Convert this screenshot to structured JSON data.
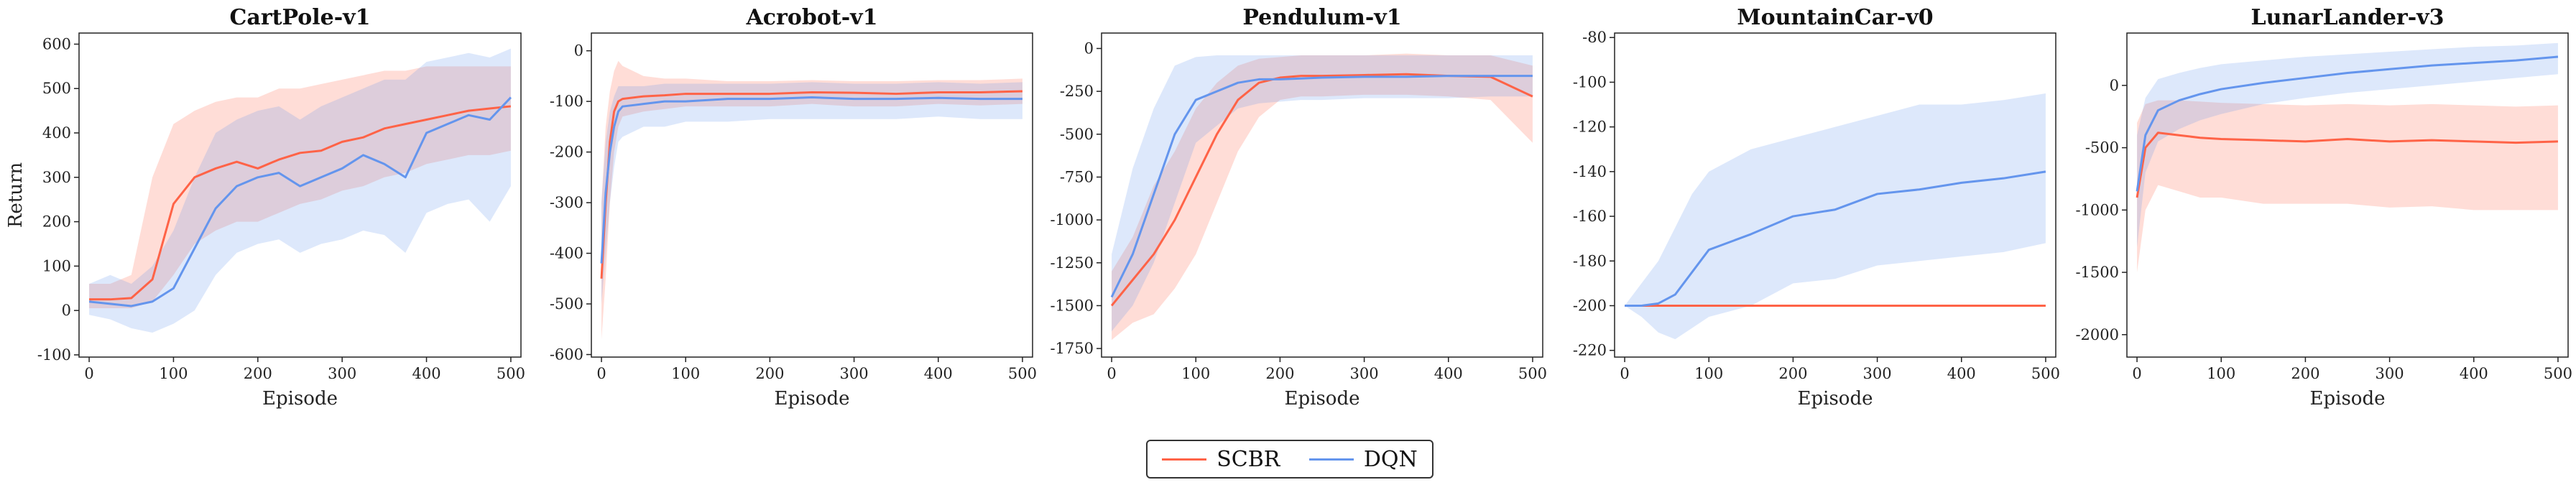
{
  "colors": {
    "SCBR": "#ff6347",
    "DQN": "#6495ed"
  },
  "legend": [
    {
      "name": "SCBR",
      "color": "#ff6347"
    },
    {
      "name": "DQN",
      "color": "#6495ed"
    }
  ],
  "chart_data": [
    {
      "type": "line",
      "title": "CartPole-v1",
      "xlabel": "Episode",
      "ylabel": "Return",
      "xlim": [
        -12,
        512
      ],
      "ylim": [
        -105,
        625
      ],
      "xticks": [
        0,
        100,
        200,
        300,
        400,
        500
      ],
      "yticks": [
        -100,
        0,
        100,
        200,
        300,
        400,
        500,
        600
      ],
      "x": [
        0,
        25,
        50,
        75,
        100,
        125,
        150,
        175,
        200,
        225,
        250,
        275,
        300,
        325,
        350,
        375,
        400,
        425,
        450,
        475,
        500
      ],
      "series": [
        {
          "name": "SCBR",
          "values": [
            25,
            25,
            28,
            70,
            240,
            300,
            320,
            335,
            320,
            340,
            355,
            360,
            380,
            390,
            410,
            420,
            430,
            440,
            450,
            455,
            460
          ],
          "lower": [
            5,
            5,
            5,
            20,
            80,
            150,
            180,
            200,
            200,
            220,
            240,
            250,
            270,
            280,
            300,
            310,
            330,
            340,
            350,
            350,
            360
          ],
          "upper": [
            60,
            60,
            80,
            300,
            420,
            450,
            470,
            480,
            480,
            500,
            500,
            510,
            520,
            530,
            540,
            540,
            550,
            550,
            550,
            550,
            550
          ]
        },
        {
          "name": "DQN",
          "values": [
            20,
            15,
            10,
            20,
            50,
            140,
            230,
            280,
            300,
            310,
            280,
            300,
            320,
            350,
            330,
            300,
            400,
            420,
            440,
            430,
            480
          ],
          "lower": [
            -10,
            -20,
            -40,
            -50,
            -30,
            0,
            80,
            130,
            150,
            160,
            130,
            150,
            160,
            180,
            170,
            130,
            220,
            240,
            250,
            200,
            280
          ],
          "upper": [
            60,
            80,
            60,
            100,
            180,
            300,
            400,
            430,
            450,
            460,
            430,
            460,
            480,
            500,
            520,
            520,
            560,
            570,
            580,
            570,
            590
          ]
        }
      ]
    },
    {
      "type": "line",
      "title": "Acrobot-v1",
      "xlabel": "Episode",
      "ylabel": "",
      "xlim": [
        -12,
        512
      ],
      "ylim": [
        -605,
        35
      ],
      "xticks": [
        0,
        100,
        200,
        300,
        400,
        500
      ],
      "yticks": [
        -600,
        -500,
        -400,
        -300,
        -200,
        -100,
        0
      ],
      "x": [
        0,
        5,
        10,
        15,
        20,
        25,
        50,
        75,
        100,
        150,
        200,
        250,
        300,
        350,
        400,
        450,
        500
      ],
      "series": [
        {
          "name": "SCBR",
          "values": [
            -450,
            -300,
            -180,
            -120,
            -100,
            -95,
            -90,
            -88,
            -85,
            -85,
            -85,
            -82,
            -83,
            -85,
            -82,
            -82,
            -80
          ],
          "lower": [
            -570,
            -450,
            -300,
            -200,
            -150,
            -130,
            -120,
            -115,
            -110,
            -110,
            -110,
            -105,
            -110,
            -110,
            -105,
            -108,
            -105
          ],
          "upper": [
            -300,
            -150,
            -80,
            -40,
            -20,
            -30,
            -50,
            -55,
            -55,
            -60,
            -60,
            -58,
            -60,
            -60,
            -58,
            -58,
            -55
          ]
        },
        {
          "name": "DQN",
          "values": [
            -420,
            -280,
            -200,
            -150,
            -120,
            -110,
            -105,
            -100,
            -100,
            -95,
            -95,
            -92,
            -95,
            -95,
            -93,
            -95,
            -95
          ],
          "lower": [
            -500,
            -400,
            -300,
            -230,
            -180,
            -170,
            -150,
            -150,
            -140,
            -140,
            -135,
            -135,
            -135,
            -135,
            -130,
            -135,
            -135
          ],
          "upper": [
            -300,
            -180,
            -120,
            -90,
            -70,
            -70,
            -70,
            -65,
            -65,
            -65,
            -65,
            -62,
            -65,
            -65,
            -62,
            -65,
            -62
          ]
        }
      ]
    },
    {
      "type": "line",
      "title": "Pendulum-v1",
      "xlabel": "Episode",
      "ylabel": "",
      "xlim": [
        -12,
        512
      ],
      "ylim": [
        -1800,
        90
      ],
      "xticks": [
        0,
        100,
        200,
        300,
        400,
        500
      ],
      "yticks": [
        -1750,
        -1500,
        -1250,
        -1000,
        -750,
        -500,
        -250,
        0
      ],
      "x": [
        0,
        25,
        50,
        75,
        100,
        125,
        150,
        175,
        200,
        225,
        250,
        300,
        350,
        400,
        450,
        500
      ],
      "series": [
        {
          "name": "SCBR",
          "values": [
            -1500,
            -1350,
            -1200,
            -1000,
            -750,
            -500,
            -300,
            -200,
            -170,
            -160,
            -160,
            -155,
            -150,
            -160,
            -165,
            -280
          ],
          "lower": [
            -1700,
            -1600,
            -1550,
            -1400,
            -1200,
            -900,
            -600,
            -400,
            -300,
            -280,
            -280,
            -270,
            -270,
            -280,
            -300,
            -550
          ],
          "upper": [
            -1300,
            -1100,
            -800,
            -600,
            -350,
            -200,
            -100,
            -60,
            -50,
            -40,
            -40,
            -40,
            -30,
            -40,
            -40,
            -100
          ]
        },
        {
          "name": "DQN",
          "values": [
            -1450,
            -1200,
            -850,
            -500,
            -300,
            -250,
            -200,
            -180,
            -180,
            -175,
            -170,
            -165,
            -165,
            -160,
            -160,
            -160
          ],
          "lower": [
            -1650,
            -1500,
            -1250,
            -900,
            -550,
            -450,
            -350,
            -320,
            -310,
            -300,
            -300,
            -290,
            -290,
            -290,
            -280,
            -280
          ],
          "upper": [
            -1200,
            -700,
            -350,
            -100,
            -50,
            -40,
            -40,
            -40,
            -40,
            -40,
            -40,
            -40,
            -40,
            -40,
            -40,
            -40
          ]
        }
      ]
    },
    {
      "type": "line",
      "title": "MountainCar-v0",
      "xlabel": "Episode",
      "ylabel": "",
      "xlim": [
        -12,
        512
      ],
      "ylim": [
        -223,
        -78
      ],
      "xticks": [
        0,
        100,
        200,
        300,
        400,
        500
      ],
      "yticks": [
        -220,
        -200,
        -180,
        -160,
        -140,
        -120,
        -100,
        -80
      ],
      "x": [
        0,
        20,
        40,
        60,
        80,
        100,
        150,
        200,
        250,
        300,
        350,
        400,
        450,
        500
      ],
      "series": [
        {
          "name": "SCBR",
          "values": [
            -200,
            -200,
            -200,
            -200,
            -200,
            -200,
            -200,
            -200,
            -200,
            -200,
            -200,
            -200,
            -200,
            -200
          ],
          "lower": [
            -200,
            -200,
            -200,
            -200,
            -200,
            -200,
            -200,
            -200,
            -200,
            -200,
            -200,
            -200,
            -200,
            -200
          ],
          "upper": [
            -200,
            -200,
            -200,
            -200,
            -200,
            -200,
            -200,
            -200,
            -200,
            -200,
            -200,
            -200,
            -200,
            -200
          ]
        },
        {
          "name": "DQN",
          "values": [
            -200,
            -200,
            -199,
            -195,
            -185,
            -175,
            -168,
            -160,
            -157,
            -150,
            -148,
            -145,
            -143,
            -140
          ],
          "lower": [
            -200,
            -205,
            -212,
            -215,
            -210,
            -205,
            -200,
            -190,
            -188,
            -182,
            -180,
            -178,
            -176,
            -172
          ],
          "upper": [
            -200,
            -190,
            -180,
            -165,
            -150,
            -140,
            -130,
            -125,
            -120,
            -115,
            -110,
            -110,
            -108,
            -105
          ]
        }
      ]
    },
    {
      "type": "line",
      "title": "LunarLander-v3",
      "xlabel": "Episode",
      "ylabel": "",
      "xlim": [
        -12,
        512
      ],
      "ylim": [
        -2180,
        420
      ],
      "xticks": [
        0,
        100,
        200,
        300,
        400,
        500
      ],
      "yticks": [
        -2000,
        -1500,
        -1000,
        -500,
        0
      ],
      "x": [
        0,
        10,
        25,
        50,
        75,
        100,
        150,
        200,
        250,
        300,
        350,
        400,
        450,
        500
      ],
      "series": [
        {
          "name": "SCBR",
          "values": [
            -900,
            -500,
            -380,
            -400,
            -420,
            -430,
            -440,
            -450,
            -430,
            -450,
            -440,
            -450,
            -460,
            -450
          ],
          "lower": [
            -1500,
            -1000,
            -800,
            -850,
            -900,
            -900,
            -950,
            -950,
            -950,
            -980,
            -970,
            -1000,
            -1000,
            -1000
          ],
          "upper": [
            -300,
            -150,
            -120,
            -120,
            -130,
            -140,
            -150,
            -160,
            -150,
            -160,
            -150,
            -160,
            -170,
            -160
          ]
        },
        {
          "name": "DQN",
          "values": [
            -850,
            -400,
            -200,
            -120,
            -70,
            -30,
            20,
            60,
            100,
            130,
            160,
            180,
            200,
            230
          ],
          "lower": [
            -1300,
            -700,
            -450,
            -350,
            -280,
            -230,
            -150,
            -100,
            -60,
            -30,
            0,
            30,
            60,
            90
          ],
          "upper": [
            -400,
            -100,
            50,
            100,
            140,
            170,
            200,
            230,
            250,
            270,
            290,
            310,
            320,
            340
          ]
        }
      ]
    }
  ]
}
